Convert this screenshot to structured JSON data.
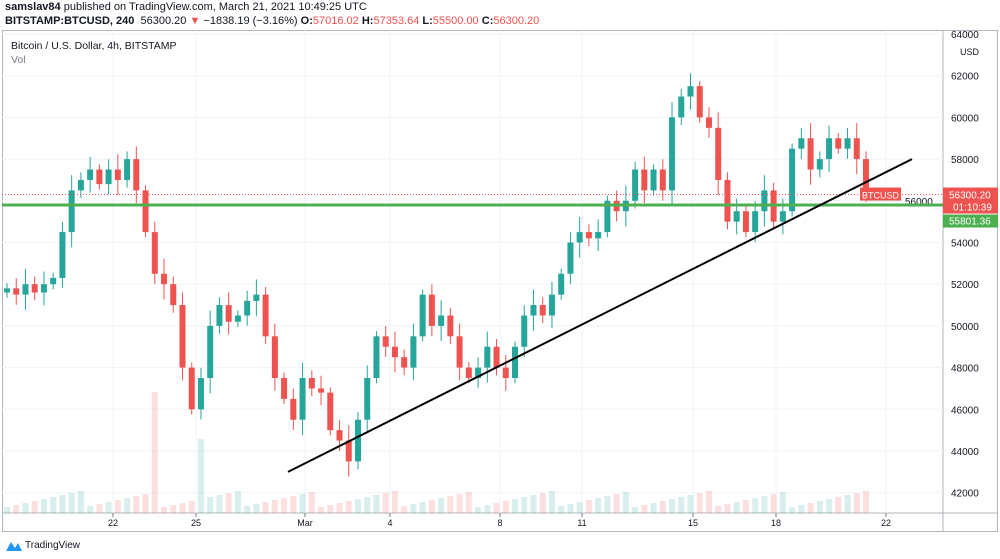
{
  "header": {
    "author": "samslav84",
    "published": "published on TradingView.com, March 21, 2021 10:49:25 UTC",
    "symbol": "BITSTAMP:BTCUSD, 240",
    "last": "56300.20",
    "change": "−1838.19 (−3.16%)",
    "o_label": "O:",
    "o": "57016.02",
    "h_label": "H:",
    "h": "57353.64",
    "l_label": "L:",
    "l": "55500.00",
    "c_label": "C:",
    "c": "56300.20"
  },
  "legend": {
    "title": "Bitcoin / U.S. Dollar, 4h, BITSTAMP",
    "volume": "Vol"
  },
  "footer": {
    "brand": "TradingView"
  },
  "colors": {
    "up": "#26a69a",
    "down": "#ef5350",
    "support": "#4caf50",
    "trendline": "#000000",
    "brand": "#2196f3"
  },
  "chart_data": {
    "type": "candlestick",
    "y_axis": {
      "currency": "USD",
      "ticks": [
        42000,
        44000,
        46000,
        48000,
        50000,
        52000,
        54000,
        56000,
        58000,
        60000,
        62000,
        64000
      ],
      "range": [
        41000,
        64200
      ]
    },
    "x_axis": {
      "ticks": [
        "22",
        "25",
        "Mar",
        "4",
        "8",
        "11",
        "15",
        "18",
        "22"
      ]
    },
    "price_label": {
      "symbol": "BTCUSD",
      "value": "56300.20",
      "countdown": "01:10:39"
    },
    "horizontal_line": {
      "value": 55801.36,
      "label": "55801.36"
    },
    "trendline": {
      "from": 43000,
      "to": 58000
    },
    "closes": [
      51800,
      51500,
      52000,
      51600,
      52000,
      52300,
      54500,
      56500,
      57000,
      57500,
      56800,
      57500,
      57000,
      58000,
      56500,
      54500,
      52500,
      52000,
      51000,
      48000,
      46000,
      47500,
      50000,
      51000,
      50200,
      50500,
      51200,
      51500,
      49500,
      47500,
      46500,
      45500,
      47500,
      47000,
      46800,
      45000,
      44500,
      43500,
      45500,
      47500,
      49500,
      49000,
      48500,
      48000,
      49500,
      51500,
      50000,
      50500,
      49500,
      48000,
      47500,
      48000,
      49000,
      48000,
      47500,
      49000,
      50500,
      51000,
      50500,
      51500,
      52500,
      54000,
      54500,
      54200,
      54500,
      56000,
      55500,
      56000,
      57500,
      56500,
      57500,
      56500,
      60000,
      61000,
      61500,
      60000,
      59500,
      57000,
      55000,
      55500,
      54500,
      55500,
      56500,
      55000,
      55500,
      58500,
      59000,
      57500,
      58000,
      59000,
      58500,
      59000,
      58000,
      56300
    ]
  }
}
